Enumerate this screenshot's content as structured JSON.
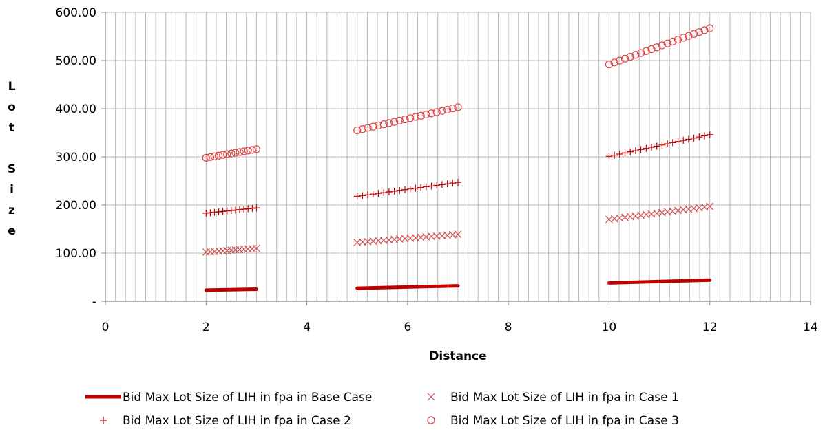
{
  "chart_data": {
    "type": "scatter",
    "xlabel": "Distance",
    "ylabel": "Lot Size",
    "xlim": [
      0,
      14
    ],
    "ylim": [
      0,
      600
    ],
    "x_ticks": [
      "0",
      "2",
      "4",
      "6",
      "8",
      "10",
      "12",
      "14"
    ],
    "y_ticks": [
      "-",
      "100.00",
      "200.00",
      "300.00",
      "400.00",
      "500.00",
      "600.00"
    ],
    "grid": true,
    "legend_position": "bottom",
    "series": [
      {
        "name": "Bid Max Lot Size of LIH in fpa in Base Case",
        "marker": "line",
        "color": "#c00000",
        "segments": [
          {
            "x": [
              2,
              3
            ],
            "y": [
              23,
              25
            ]
          },
          {
            "x": [
              5,
              7
            ],
            "y": [
              27,
              32
            ]
          },
          {
            "x": [
              10,
              12
            ],
            "y": [
              38,
              44
            ]
          }
        ]
      },
      {
        "name": "Bid Max Lot Size of LIH in fpa in Case 1",
        "marker": "x",
        "color": "#d05050",
        "segments": [
          {
            "x": [
              2,
              3
            ],
            "y": [
              102,
              110
            ],
            "n": 13
          },
          {
            "x": [
              5,
              7
            ],
            "y": [
              122,
              139
            ],
            "n": 20
          },
          {
            "x": [
              10,
              12
            ],
            "y": [
              170,
              197
            ],
            "n": 20
          }
        ]
      },
      {
        "name": "Bid Max Lot Size of LIH in fpa in Case 2",
        "marker": "plus",
        "color": "#c00000",
        "segments": [
          {
            "x": [
              2,
              3
            ],
            "y": [
              183,
              194
            ],
            "n": 13
          },
          {
            "x": [
              5,
              7
            ],
            "y": [
              218,
              247
            ],
            "n": 20
          },
          {
            "x": [
              10,
              12
            ],
            "y": [
              301,
              346
            ],
            "n": 20
          }
        ]
      },
      {
        "name": "Bid Max Lot Size of LIH in fpa in Case 3",
        "marker": "circle",
        "color": "#e04040",
        "segments": [
          {
            "x": [
              2,
              3
            ],
            "y": [
              298,
              316
            ],
            "n": 13
          },
          {
            "x": [
              5,
              7
            ],
            "y": [
              355,
              403
            ],
            "n": 20
          },
          {
            "x": [
              10,
              12
            ],
            "y": [
              492,
              567
            ],
            "n": 20
          }
        ]
      }
    ]
  }
}
